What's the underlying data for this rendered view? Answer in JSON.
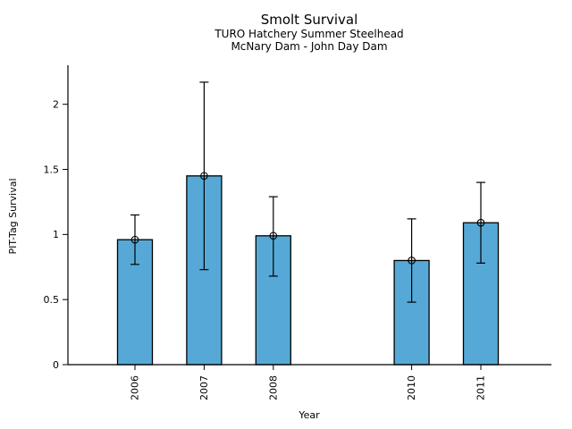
{
  "page": {
    "background": "#ffffff"
  },
  "colors": {
    "bar_fill": "#56A9D6",
    "bar_edge": "#000000",
    "axis": "#000000",
    "text": "#000000"
  },
  "chart_data": {
    "type": "bar",
    "title": "Smolt Survival",
    "subtitles": [
      "TURO Hatchery Summer Steelhead",
      "McNary Dam - John Day Dam"
    ],
    "xlabel": "Year",
    "ylabel": "PIT-Tag Survival",
    "categories": [
      "2006",
      "2007",
      "2008",
      "2010",
      "2011"
    ],
    "x_numeric": [
      2006,
      2007,
      2008,
      2010,
      2011
    ],
    "series": [
      {
        "name": "PIT-Tag Survival",
        "values": [
          0.96,
          1.45,
          0.99,
          0.8,
          1.09
        ],
        "error_low": [
          0.77,
          0.73,
          0.68,
          0.48,
          0.78
        ],
        "error_high": [
          1.15,
          2.17,
          1.29,
          1.12,
          1.4
        ]
      }
    ],
    "ylim": [
      0,
      2.3
    ],
    "yticks": [
      0,
      0.5,
      1,
      1.5,
      2
    ],
    "ytick_labels": [
      "0",
      "0.5",
      "1",
      "1.5",
      "2"
    ],
    "grid": false,
    "legend": "none",
    "marker": "open-circle",
    "x_tick_rotation": 90
  }
}
